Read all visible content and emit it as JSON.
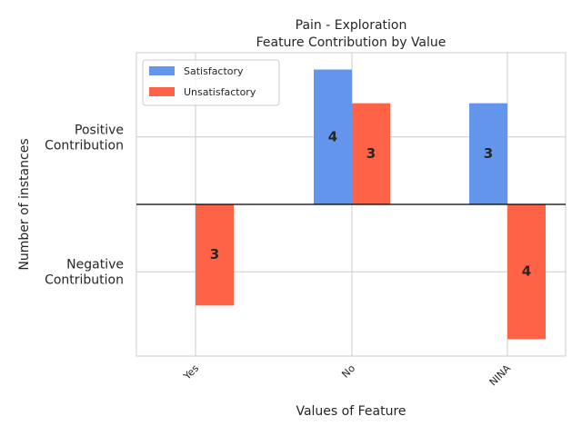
{
  "chart_data": {
    "type": "bar",
    "title": [
      "Pain - Exploration",
      "Feature Contribution by Value"
    ],
    "xlabel": "Values of Feature",
    "ylabel": "Number of instances",
    "categories": [
      "Yes",
      "No",
      "NINA"
    ],
    "y_tick_labels": [
      {
        "value": 2,
        "lines": [
          "Positive",
          "Contribution"
        ]
      },
      {
        "value": -2,
        "lines": [
          "Negative",
          "Contribution"
        ]
      }
    ],
    "ylim": [
      -4.5,
      4.5
    ],
    "series": [
      {
        "name": "Satisfactory",
        "color": "#6495ED",
        "values": [
          null,
          4,
          3
        ]
      },
      {
        "name": "Unsatisfactory",
        "color": "#FF6347",
        "values": [
          -3,
          3,
          -4
        ]
      }
    ],
    "data_labels": [
      {
        "category": "Yes",
        "series": "Unsatisfactory",
        "text": "3"
      },
      {
        "category": "No",
        "series": "Satisfactory",
        "text": "4"
      },
      {
        "category": "No",
        "series": "Unsatisfactory",
        "text": "3"
      },
      {
        "category": "NINA",
        "series": "Satisfactory",
        "text": "3"
      },
      {
        "category": "NINA",
        "series": "Unsatisfactory",
        "text": "4"
      }
    ],
    "grid": true,
    "legend": "top-left",
    "zero_line": true
  }
}
